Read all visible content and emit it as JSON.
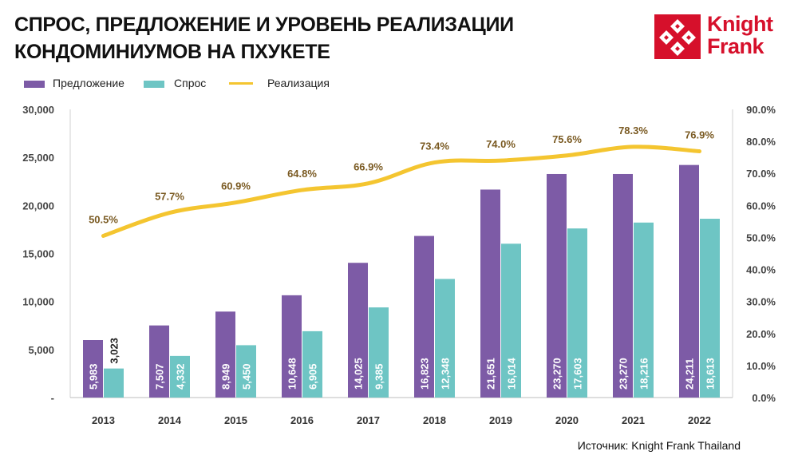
{
  "page": {
    "title_line1": "СПРОС, ПРЕДЛОЖЕНИЕ И УРОВЕНЬ РЕАЛИЗАЦИИ",
    "title_line2": "КОНДОМИНИУМОВ НА ПХУКЕТЕ",
    "logo_line1": "Knight",
    "logo_line2": "Frank",
    "source": "Источник: Knight Frank Thailand"
  },
  "colors": {
    "supply": "#7d5ba6",
    "demand": "#6ec5c4",
    "absorption": "#f4c530",
    "absorption_label": "#7a5a22",
    "logo": "#d6102b"
  },
  "chart_data": {
    "type": "bar",
    "categories": [
      "2013",
      "2014",
      "2015",
      "2016",
      "2017",
      "2018",
      "2019",
      "2020",
      "2021",
      "2022"
    ],
    "series": [
      {
        "name": "Предложение",
        "type": "bar",
        "axis": "left",
        "values": [
          5983,
          7507,
          8949,
          10648,
          14025,
          16823,
          21651,
          23270,
          23270,
          24211
        ],
        "labels": [
          "5,983",
          "7,507",
          "8,949",
          "10,648",
          "14,025",
          "16,823",
          "21,651",
          "23,270",
          "23,270",
          "24,211"
        ]
      },
      {
        "name": "Спрос",
        "type": "bar",
        "axis": "left",
        "values": [
          3023,
          4332,
          5450,
          6905,
          9385,
          12348,
          16014,
          17603,
          18216,
          18613
        ],
        "labels": [
          "3,023",
          "4,332",
          "5,450",
          "6,905",
          "9,385",
          "12,348",
          "16,014",
          "17,603",
          "18,216",
          "18,613"
        ]
      },
      {
        "name": "Реализация",
        "type": "line",
        "axis": "right",
        "values": [
          50.5,
          57.7,
          60.9,
          64.8,
          66.9,
          73.4,
          74.0,
          75.6,
          78.3,
          76.9
        ],
        "labels": [
          "50.5%",
          "57.7%",
          "60.9%",
          "64.8%",
          "66.9%",
          "73.4%",
          "74.0%",
          "75.6%",
          "78.3%",
          "76.9%"
        ]
      }
    ],
    "y_left": {
      "range": [
        0,
        30000
      ],
      "ticks": [
        0,
        5000,
        10000,
        15000,
        20000,
        25000,
        30000
      ],
      "tick_labels": [
        "-",
        "5,000",
        "10,000",
        "15,000",
        "20,000",
        "25,000",
        "30,000"
      ]
    },
    "y_right": {
      "range": [
        0,
        90
      ],
      "ticks": [
        0,
        10,
        20,
        30,
        40,
        50,
        60,
        70,
        80,
        90
      ],
      "tick_labels": [
        "0.0%",
        "10.0%",
        "20.0%",
        "30.0%",
        "40.0%",
        "50.0%",
        "60.0%",
        "70.0%",
        "80.0%",
        "90.0%"
      ]
    },
    "legend_position": "top-left",
    "grid": false
  }
}
